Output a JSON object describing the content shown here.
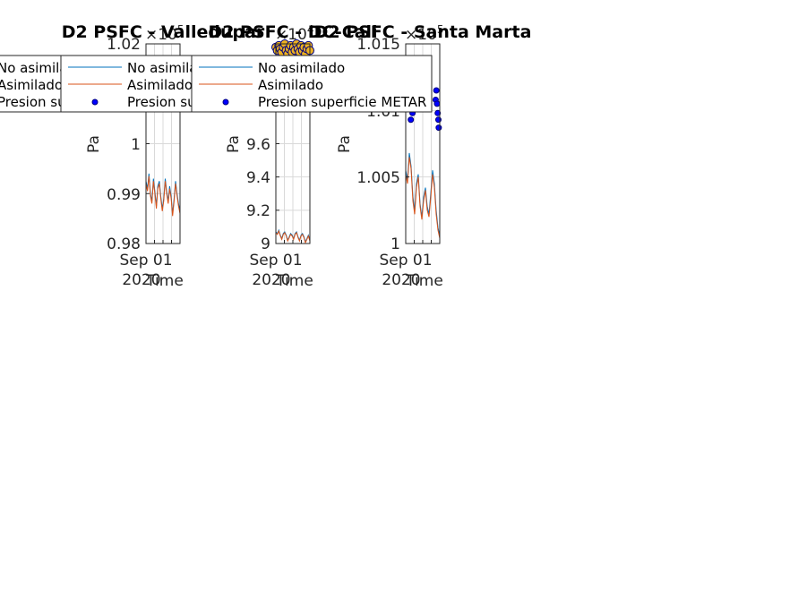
{
  "figure": {
    "colors": {
      "no_asimilado": "#0072BD",
      "asimilado": "#D95319",
      "metar_fill": "#0000FF",
      "metar_edge": "#000080",
      "axis": "#262626",
      "grid": "#d9d9d9"
    }
  },
  "chart_data": [
    {
      "type": "line",
      "title": "D2 PSFC - Valledupar",
      "ylabel": "Pa",
      "xlabel": "Time",
      "x_tick_labels": [
        "Sep 01",
        "2020"
      ],
      "ylim": [
        0.98,
        1.02
      ],
      "yticks": [
        0.98,
        0.99,
        1,
        1.02
      ],
      "y_exponent_label": "×10",
      "y_exponent": "5",
      "legend": [
        "No asimilado",
        "Asimilado",
        "Presion superficie METAR"
      ],
      "legend_location": "northwest (clipped)",
      "series": [
        {
          "name": "No asimilado",
          "values": [
            0.9925,
            0.991,
            0.994,
            0.99,
            0.9885,
            0.993,
            0.9905,
            0.9875,
            0.9915,
            0.9925,
            0.9895,
            0.987,
            0.989,
            0.993,
            0.9905,
            0.9885,
            0.9915,
            0.9895,
            0.986,
            0.989,
            0.9925,
            0.99,
            0.988,
            0.9865
          ]
        },
        {
          "name": "Asimilado",
          "values": [
            0.992,
            0.9905,
            0.9935,
            0.9895,
            0.988,
            0.9925,
            0.99,
            0.987,
            0.991,
            0.992,
            0.989,
            0.9865,
            0.9885,
            0.9925,
            0.99,
            0.988,
            0.991,
            0.989,
            0.9855,
            0.9885,
            0.992,
            0.9895,
            0.9875,
            0.986
          ]
        }
      ]
    },
    {
      "type": "line",
      "title": "D2 PSFC - DC-Cali",
      "ylabel": "Pa",
      "xlabel": "Time",
      "x_tick_labels": [
        "Sep 01",
        "2020"
      ],
      "ylim": [
        9,
        10.2
      ],
      "yticks": [
        9,
        9.2,
        9.4,
        9.6
      ],
      "y_exponent_label": "×10",
      "y_exponent": "4",
      "legend": [
        "No asimilado",
        "Asimilado",
        "Presion superficie METAR"
      ],
      "legend_location": "northwest (clipped)",
      "series": [
        {
          "name": "No asimilado",
          "values": [
            9.07,
            9.06,
            9.08,
            9.05,
            9.03,
            9.06,
            9.07,
            9.05,
            9.02,
            9.04,
            9.06,
            9.05,
            9.03,
            9.06,
            9.07,
            9.04,
            9.02,
            9.05,
            9.06,
            9.04,
            9.01,
            9.03,
            9.05,
            9.02
          ]
        },
        {
          "name": "Asimilado",
          "values": [
            9.065,
            9.055,
            9.075,
            9.045,
            9.025,
            9.055,
            9.065,
            9.045,
            9.015,
            9.035,
            9.055,
            9.045,
            9.025,
            9.055,
            9.065,
            9.035,
            9.015,
            9.045,
            9.055,
            9.035,
            9.005,
            9.025,
            9.045,
            9.015
          ]
        },
        {
          "name": "Presion superficie METAR",
          "values": [
            10.18,
            10.16,
            10.19,
            10.17,
            10.15,
            10.18,
            10.2,
            10.16,
            10.14,
            10.17,
            10.19,
            10.15,
            10.18,
            10.16,
            10.2,
            10.17,
            10.15,
            10.19,
            10.16,
            10.18,
            10.14,
            10.17,
            10.19,
            10.16
          ]
        }
      ]
    },
    {
      "type": "line",
      "title": "D2 PSFC - Santa Marta",
      "ylabel": "Pa",
      "xlabel": "Time",
      "x_tick_labels": [
        "Sep 01",
        "2020"
      ],
      "ylim": [
        1,
        1.015
      ],
      "yticks": [
        1,
        1.005,
        1.01,
        1.015
      ],
      "y_exponent_label": "×10",
      "y_exponent": "5",
      "legend": [
        "No asimilado",
        "Asimilado",
        "Presion superficie METAR"
      ],
      "legend_location": "northwest",
      "series": [
        {
          "name": "No asimilado",
          "values": [
            1.0055,
            1.0048,
            1.0068,
            1.0058,
            1.0035,
            1.0025,
            1.0045,
            1.0052,
            1.003,
            1.002,
            1.0035,
            1.0042,
            1.0028,
            1.0022,
            1.0038,
            1.0055,
            1.0045,
            1.0025,
            1.0012,
            1.0006
          ]
        },
        {
          "name": "Asimilado",
          "values": [
            1.0052,
            1.0045,
            1.0065,
            1.0056,
            1.0032,
            1.0022,
            1.0042,
            1.005,
            1.0028,
            1.0018,
            1.0032,
            1.004,
            1.0025,
            1.002,
            1.0035,
            1.0052,
            1.0042,
            1.0022,
            1.001,
            1.0004
          ]
        },
        {
          "name": "Presion superficie METAR",
          "x_fraction": [
            0.1,
            0.15,
            0.2,
            0.88,
            0.9,
            0.92,
            0.94,
            0.96,
            0.97
          ],
          "values": [
            1.0105,
            1.0093,
            1.0098,
            1.0108,
            1.0115,
            1.0105,
            1.0098,
            1.0093,
            1.0087
          ]
        }
      ]
    }
  ]
}
